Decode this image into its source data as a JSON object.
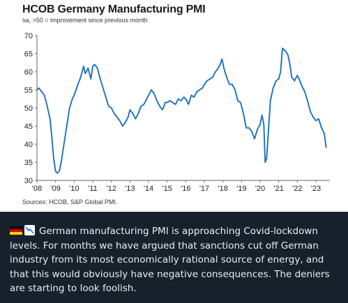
{
  "chart": {
    "title": "HCOB Germany Manufacturing PMI",
    "subtitle": "sa, >50 = improvement since previous month",
    "source": "Sources: HCOB, S&P Global PMI."
  },
  "chart_data": {
    "type": "line",
    "title": "HCOB Germany Manufacturing PMI",
    "subtitle": "sa, >50 = improvement since previous month",
    "xlabel": "",
    "ylabel": "",
    "ylim": [
      30,
      70
    ],
    "yticks": [
      30,
      35,
      40,
      45,
      50,
      55,
      60,
      65,
      70
    ],
    "xlim": [
      2008.0,
      2023.75
    ],
    "xticks": [
      "'08",
      "'09",
      "'10",
      "'11",
      "'12",
      "'13",
      "'14",
      "'15",
      "'16",
      "'17",
      "'18",
      "'19",
      "'20",
      "'21",
      "'22",
      "'23"
    ],
    "grid": false,
    "line_color": "#1d6fbf",
    "series": [
      {
        "name": "",
        "x": [
          2008.0,
          2008.1,
          2008.25,
          2008.4,
          2008.55,
          2008.7,
          2008.8,
          2008.9,
          2009.0,
          2009.1,
          2009.2,
          2009.3,
          2009.45,
          2009.6,
          2009.75,
          2009.9,
          2010.0,
          2010.2,
          2010.35,
          2010.5,
          2010.6,
          2010.75,
          2010.9,
          2011.0,
          2011.1,
          2011.25,
          2011.4,
          2011.55,
          2011.7,
          2011.85,
          2012.0,
          2012.15,
          2012.3,
          2012.45,
          2012.6,
          2012.75,
          2012.9,
          2013.0,
          2013.15,
          2013.3,
          2013.45,
          2013.6,
          2013.75,
          2013.9,
          2014.0,
          2014.15,
          2014.3,
          2014.45,
          2014.6,
          2014.75,
          2014.9,
          2015.0,
          2015.15,
          2015.3,
          2015.45,
          2015.6,
          2015.75,
          2015.9,
          2016.0,
          2016.15,
          2016.3,
          2016.45,
          2016.6,
          2016.75,
          2016.9,
          2017.0,
          2017.15,
          2017.3,
          2017.45,
          2017.6,
          2017.75,
          2017.85,
          2017.95,
          2018.05,
          2018.2,
          2018.35,
          2018.5,
          2018.65,
          2018.8,
          2018.95,
          2019.1,
          2019.25,
          2019.4,
          2019.55,
          2019.7,
          2019.85,
          2020.0,
          2020.1,
          2020.2,
          2020.27,
          2020.35,
          2020.45,
          2020.55,
          2020.7,
          2020.85,
          2021.0,
          2021.1,
          2021.2,
          2021.3,
          2021.4,
          2021.5,
          2021.6,
          2021.7,
          2021.85,
          2022.0,
          2022.1,
          2022.25,
          2022.4,
          2022.55,
          2022.7,
          2022.85,
          2023.0,
          2023.15,
          2023.3,
          2023.45,
          2023.55
        ],
        "y": [
          55,
          55.5,
          54.5,
          53.5,
          50.5,
          47,
          42,
          36,
          32.5,
          32,
          32.5,
          35,
          40,
          45,
          50,
          52.5,
          53.5,
          56.5,
          58.5,
          61.5,
          59.5,
          61,
          58,
          61.5,
          62,
          61,
          58,
          55.5,
          53,
          50.5,
          50,
          48.5,
          47.5,
          46.5,
          45,
          46,
          47.5,
          49.5,
          48.5,
          47,
          48.5,
          50.5,
          51,
          52.5,
          53.5,
          55,
          54,
          52,
          50.5,
          49.5,
          51.5,
          51.5,
          52,
          51.5,
          51,
          52.5,
          52,
          53,
          52.5,
          51,
          53.5,
          53,
          54.5,
          55,
          55.5,
          56.5,
          57.5,
          58,
          58.5,
          60,
          61,
          62,
          63.5,
          61,
          58.5,
          56.5,
          56.5,
          55,
          52,
          51.5,
          48.5,
          44.5,
          44.5,
          43.5,
          41.5,
          44,
          45.5,
          48,
          45.5,
          35,
          36,
          44,
          52,
          55.5,
          57.5,
          58,
          60,
          66.5,
          66,
          65.5,
          64.5,
          62,
          58.5,
          57.5,
          59,
          58,
          56,
          54.5,
          52,
          49,
          47.5,
          46.5,
          47,
          44.5,
          43,
          39
        ]
      }
    ]
  },
  "caption": {
    "flag_icon": "germany-flag-icon",
    "trend_icon": "chart-decreasing-icon",
    "text": "German manufacturing PMI is approaching Covid-lockdown levels. For months we have argued that sanctions cut off German industry from its most economically rational source of energy, and that this would obviously have negative consequences. The deniers are starting to look foolish.",
    "background": "#17212b",
    "text_color": "#e9eef3"
  }
}
